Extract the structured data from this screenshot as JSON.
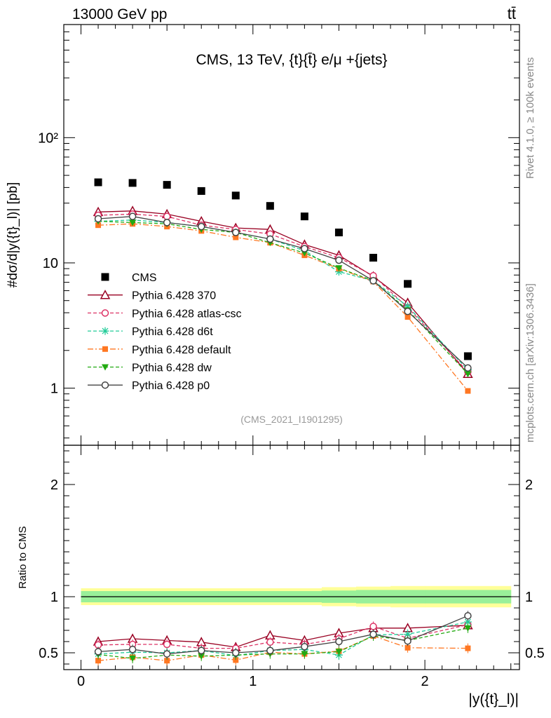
{
  "header": {
    "energy": "13000 GeV pp",
    "process": "tt̄"
  },
  "side_labels": {
    "rivet": "Rivet 4.1.0, ≥ 100k events",
    "source": "mcplots.cern.ch [arXiv:1306.3436]"
  },
  "colors": {
    "cms": "#000000",
    "p370": "#990022",
    "atlas": "#dd3366",
    "d6t": "#22cc99",
    "default": "#ff7722",
    "dw": "#22aa11",
    "p0": "#444444",
    "band_inner": "#99f099",
    "band_outer": "#ffff99"
  },
  "chart_data": [
    {
      "type": "line",
      "title": "CMS, 13 TeV, {t}{t̄} e/μ +{jets}",
      "ylabel": "#dσ/d|y({t}_l)| [pb]",
      "yscale": "log",
      "ylim": [
        0.35,
        800
      ],
      "xlim": [
        -0.1,
        2.55
      ],
      "yticks": [
        {
          "v": 1,
          "label": "1"
        },
        {
          "v": 10,
          "label": "10"
        },
        {
          "v": 100,
          "label": "10²"
        }
      ],
      "watermark": "(CMS_2021_I1901295)",
      "x": [
        0.1,
        0.3,
        0.5,
        0.7,
        0.9,
        1.1,
        1.3,
        1.5,
        1.7,
        1.9,
        2.25
      ],
      "series": [
        {
          "key": "cms",
          "name": "CMS",
          "marker": "square",
          "values": [
            44,
            43.5,
            42,
            37.5,
            34.5,
            28.5,
            23.5,
            17.5,
            11,
            6.8,
            1.8
          ]
        },
        {
          "key": "p370",
          "name": "Pythia 6.428 370",
          "marker": "triangle-open",
          "line": "solid",
          "values": [
            25.5,
            26,
            24.5,
            21.5,
            19,
            18.5,
            14,
            11.5,
            7.8,
            4.8,
            1.3
          ]
        },
        {
          "key": "atlas",
          "name": "Pythia 6.428 atlas-csc",
          "marker": "circle-open",
          "line": "dashed",
          "values": [
            24,
            24.5,
            23.5,
            20,
            18.5,
            17,
            13.5,
            11,
            7.9,
            4.4,
            1.35
          ]
        },
        {
          "key": "d6t",
          "name": "Pythia 6.428 d6t",
          "marker": "star",
          "line": "dashed",
          "values": [
            21.5,
            22,
            21,
            19.5,
            17.5,
            15.5,
            12.5,
            8.5,
            7.2,
            4.5,
            1.4
          ]
        },
        {
          "key": "default",
          "name": "Pythia 6.428 default",
          "marker": "square-small",
          "line": "dashdot",
          "values": [
            20,
            20.5,
            19.5,
            18,
            16,
            14.5,
            11.5,
            9,
            7.1,
            3.7,
            0.95
          ]
        },
        {
          "key": "dw",
          "name": "Pythia 6.428 dw",
          "marker": "triangle-down",
          "line": "dashed",
          "values": [
            21.5,
            21,
            20.5,
            18.5,
            17.5,
            14.5,
            12,
            9.1,
            7.2,
            4.2,
            1.3
          ]
        },
        {
          "key": "p0",
          "name": "Pythia 6.428 p0",
          "marker": "circle-open",
          "line": "solid",
          "values": [
            22.5,
            23.5,
            21,
            19.5,
            17.5,
            15.5,
            13,
            10.5,
            7.2,
            4.1,
            1.45
          ]
        }
      ]
    },
    {
      "type": "line",
      "xlabel": "|y({t}_l)|",
      "ylabel": "Ratio to CMS",
      "ylim": [
        0.35,
        2.35
      ],
      "xlim": [
        -0.1,
        2.55
      ],
      "yticks": [
        {
          "v": 0.5,
          "label": "0.5"
        },
        {
          "v": 1,
          "label": "1"
        },
        {
          "v": 2,
          "label": "2"
        }
      ],
      "xticks": [
        {
          "v": 0,
          "label": "0"
        },
        {
          "v": 1,
          "label": "1"
        },
        {
          "v": 2,
          "label": "2"
        }
      ],
      "x": [
        0.1,
        0.3,
        0.5,
        0.7,
        0.9,
        1.1,
        1.3,
        1.5,
        1.7,
        1.9,
        2.25
      ],
      "bins": [
        0,
        0.2,
        0.4,
        0.6,
        0.8,
        1.0,
        1.2,
        1.4,
        1.6,
        1.8,
        2.0,
        2.5
      ],
      "band_inner": [
        0.05,
        0.05,
        0.05,
        0.05,
        0.05,
        0.05,
        0.05,
        0.055,
        0.06,
        0.06,
        0.06
      ],
      "band_outer": [
        0.075,
        0.075,
        0.075,
        0.075,
        0.075,
        0.075,
        0.075,
        0.085,
        0.09,
        0.095,
        0.095
      ],
      "series": [
        {
          "key": "p370",
          "values": [
            0.6,
            0.625,
            0.61,
            0.595,
            0.55,
            0.655,
            0.61,
            0.675,
            0.72,
            0.72,
            0.745
          ]
        },
        {
          "key": "atlas",
          "values": [
            0.57,
            0.575,
            0.575,
            0.54,
            0.54,
            0.595,
            0.575,
            0.625,
            0.735,
            0.63,
            0.75
          ]
        },
        {
          "key": "d6t",
          "values": [
            0.49,
            0.505,
            0.5,
            0.52,
            0.475,
            0.52,
            0.53,
            0.48,
            0.66,
            0.665,
            0.775
          ]
        },
        {
          "key": "default",
          "values": [
            0.43,
            0.46,
            0.43,
            0.48,
            0.435,
            0.505,
            0.49,
            0.515,
            0.65,
            0.545,
            0.54
          ]
        },
        {
          "key": "dw",
          "values": [
            0.485,
            0.45,
            0.48,
            0.47,
            0.48,
            0.49,
            0.49,
            0.51,
            0.65,
            0.61,
            0.72
          ]
        },
        {
          "key": "p0",
          "values": [
            0.51,
            0.53,
            0.49,
            0.52,
            0.5,
            0.52,
            0.555,
            0.6,
            0.665,
            0.605,
            0.83
          ]
        }
      ]
    }
  ]
}
